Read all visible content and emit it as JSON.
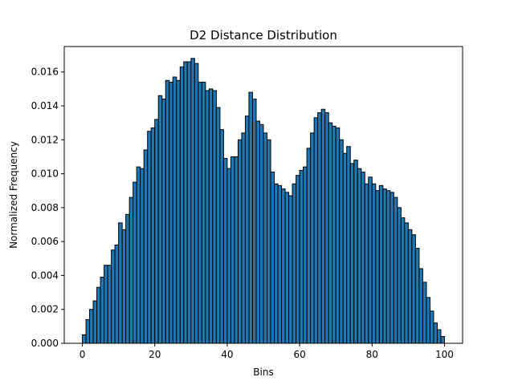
{
  "chart_data": {
    "type": "bar",
    "title": "D2 Distance Distribution",
    "xlabel": "Bins",
    "ylabel": "Normalized Frequency",
    "xlim": [
      -5,
      105
    ],
    "ylim": [
      0,
      0.0175
    ],
    "x_ticks": [
      0,
      20,
      40,
      60,
      80,
      100
    ],
    "x_tick_labels": [
      "0",
      "20",
      "40",
      "60",
      "80",
      "100"
    ],
    "y_ticks": [
      0,
      0.002,
      0.004,
      0.006,
      0.008,
      0.01,
      0.012,
      0.014,
      0.016
    ],
    "y_tick_labels": [
      "0.000",
      "0.002",
      "0.004",
      "0.006",
      "0.008",
      "0.010",
      "0.012",
      "0.014",
      "0.016"
    ],
    "grid": false,
    "bar_color": "#1f77b4",
    "edge_color": "#000000",
    "x": [
      0,
      1,
      2,
      3,
      4,
      5,
      6,
      7,
      8,
      9,
      10,
      11,
      12,
      13,
      14,
      15,
      16,
      17,
      18,
      19,
      20,
      21,
      22,
      23,
      24,
      25,
      26,
      27,
      28,
      29,
      30,
      31,
      32,
      33,
      34,
      35,
      36,
      37,
      38,
      39,
      40,
      41,
      42,
      43,
      44,
      45,
      46,
      47,
      48,
      49,
      50,
      51,
      52,
      53,
      54,
      55,
      56,
      57,
      58,
      59,
      60,
      61,
      62,
      63,
      64,
      65,
      66,
      67,
      68,
      69,
      70,
      71,
      72,
      73,
      74,
      75,
      76,
      77,
      78,
      79,
      80,
      81,
      82,
      83,
      84,
      85,
      86,
      87,
      88,
      89,
      90,
      91,
      92,
      93,
      94,
      95,
      96,
      97,
      98,
      99
    ],
    "values": [
      0.0005,
      0.0014,
      0.002,
      0.0025,
      0.0033,
      0.0039,
      0.0046,
      0.0046,
      0.0055,
      0.0058,
      0.0071,
      0.0067,
      0.0076,
      0.0086,
      0.0095,
      0.0104,
      0.0103,
      0.0114,
      0.0125,
      0.0127,
      0.0132,
      0.0146,
      0.0144,
      0.0155,
      0.0154,
      0.0157,
      0.0155,
      0.0163,
      0.0166,
      0.0166,
      0.0168,
      0.0165,
      0.0154,
      0.0154,
      0.0149,
      0.015,
      0.0149,
      0.0139,
      0.0126,
      0.0109,
      0.0103,
      0.011,
      0.011,
      0.012,
      0.0124,
      0.0134,
      0.0148,
      0.0144,
      0.0131,
      0.0129,
      0.0124,
      0.012,
      0.0101,
      0.0094,
      0.0093,
      0.0091,
      0.0089,
      0.0087,
      0.0094,
      0.0099,
      0.0102,
      0.0104,
      0.0115,
      0.0124,
      0.0133,
      0.0136,
      0.0138,
      0.0136,
      0.013,
      0.0128,
      0.0127,
      0.012,
      0.0112,
      0.0116,
      0.0106,
      0.0108,
      0.0103,
      0.0101,
      0.0094,
      0.0098,
      0.0094,
      0.009,
      0.0093,
      0.0091,
      0.009,
      0.0089,
      0.0086,
      0.008,
      0.0074,
      0.0071,
      0.0067,
      0.0064,
      0.0056,
      0.0044,
      0.0036,
      0.0027,
      0.0019,
      0.0012,
      0.0008,
      0.0004
    ]
  }
}
